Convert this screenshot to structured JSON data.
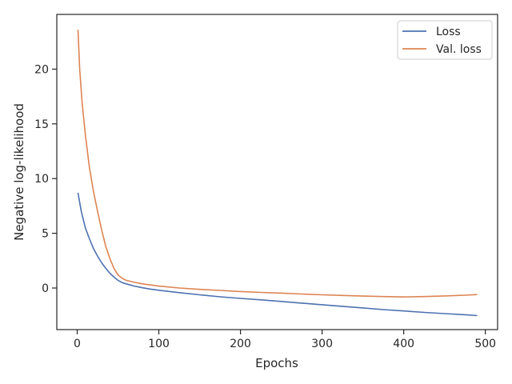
{
  "chart_data": {
    "type": "line",
    "title": "",
    "xlabel": "Epochs",
    "ylabel": "Negative log-likelihood",
    "xlim": [
      -25,
      515
    ],
    "ylim": [
      -3.8,
      25
    ],
    "xticks": [
      0,
      100,
      200,
      300,
      400,
      500
    ],
    "yticks": [
      0,
      5,
      10,
      15,
      20
    ],
    "grid": false,
    "legend_position": "top-right",
    "series": [
      {
        "name": "Loss",
        "color": "#4c72b0",
        "x": [
          1,
          5,
          10,
          15,
          20,
          25,
          30,
          35,
          40,
          45,
          50,
          55,
          60,
          70,
          80,
          90,
          100,
          125,
          150,
          175,
          200,
          225,
          250,
          275,
          300,
          325,
          350,
          375,
          400,
          425,
          450,
          475,
          490
        ],
        "y": [
          8.7,
          7.0,
          5.5,
          4.5,
          3.6,
          2.9,
          2.3,
          1.8,
          1.35,
          1.0,
          0.7,
          0.5,
          0.38,
          0.18,
          0.02,
          -0.1,
          -0.2,
          -0.42,
          -0.62,
          -0.8,
          -0.95,
          -1.08,
          -1.23,
          -1.38,
          -1.53,
          -1.67,
          -1.82,
          -1.97,
          -2.1,
          -2.23,
          -2.34,
          -2.44,
          -2.52
        ]
      },
      {
        "name": "Val. loss",
        "color": "#dd8452",
        "x": [
          1,
          3,
          6,
          10,
          15,
          20,
          25,
          30,
          35,
          40,
          45,
          50,
          55,
          60,
          70,
          80,
          90,
          100,
          125,
          150,
          175,
          200,
          225,
          250,
          275,
          300,
          325,
          350,
          375,
          400,
          425,
          450,
          475,
          490
        ],
        "y": [
          23.6,
          20.0,
          17.0,
          14.0,
          11.0,
          8.8,
          7.0,
          5.3,
          3.8,
          2.7,
          1.8,
          1.2,
          0.9,
          0.7,
          0.52,
          0.38,
          0.28,
          0.18,
          0.0,
          -0.12,
          -0.22,
          -0.32,
          -0.4,
          -0.47,
          -0.55,
          -0.62,
          -0.68,
          -0.74,
          -0.78,
          -0.82,
          -0.78,
          -0.72,
          -0.66,
          -0.6
        ]
      }
    ]
  }
}
